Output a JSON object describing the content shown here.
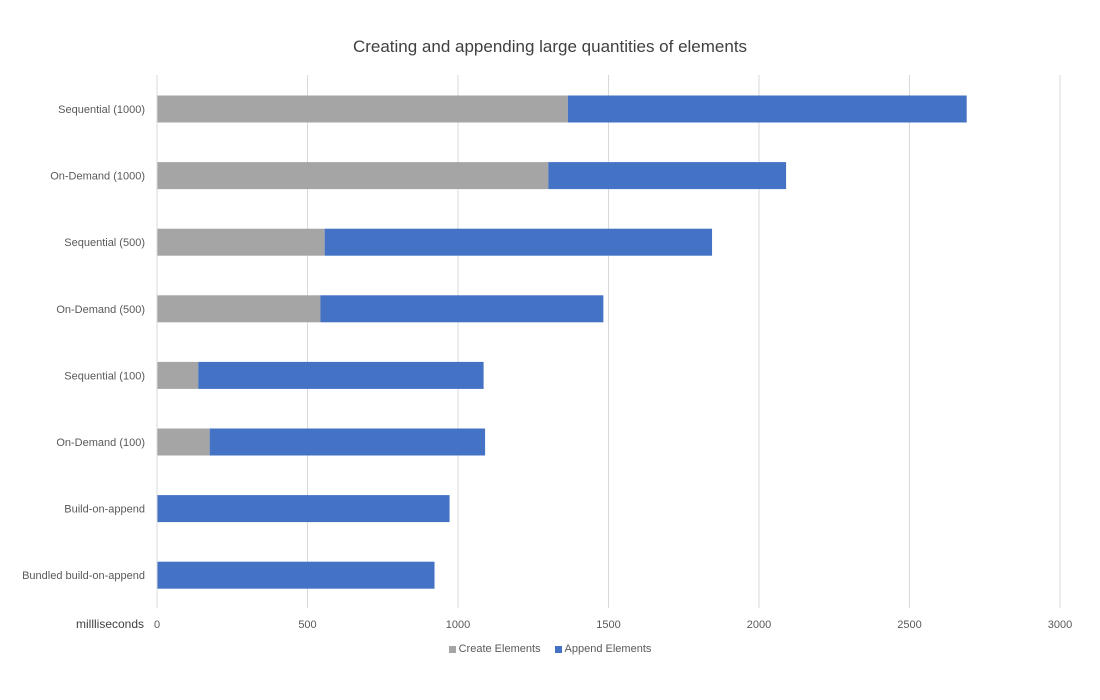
{
  "chart_data": {
    "type": "bar",
    "orientation": "horizontal",
    "stacked": true,
    "title": "Creating and appending large quantities of elements",
    "xlabel": "millliseconds",
    "xlim": [
      0,
      3000
    ],
    "xticks": [
      0,
      500,
      1000,
      1500,
      2000,
      2500,
      3000
    ],
    "grid": "vertical",
    "legend_position": "bottom",
    "categories": [
      "Sequential (1000)",
      "On-Demand (1000)",
      "Sequential (500)",
      "On-Demand (500)",
      "Sequential (100)",
      "On-Demand (100)",
      "Build-on-append",
      "Bundled build-on-append"
    ],
    "series": [
      {
        "name": "Create Elements",
        "color": "#a5a5a5",
        "values": [
          1365,
          1300,
          557,
          543,
          137,
          175,
          0,
          0
        ]
      },
      {
        "name": "Append Elements",
        "color": "#4472c4",
        "values": [
          1325,
          790,
          1287,
          940,
          948,
          915,
          972,
          922
        ]
      }
    ]
  }
}
